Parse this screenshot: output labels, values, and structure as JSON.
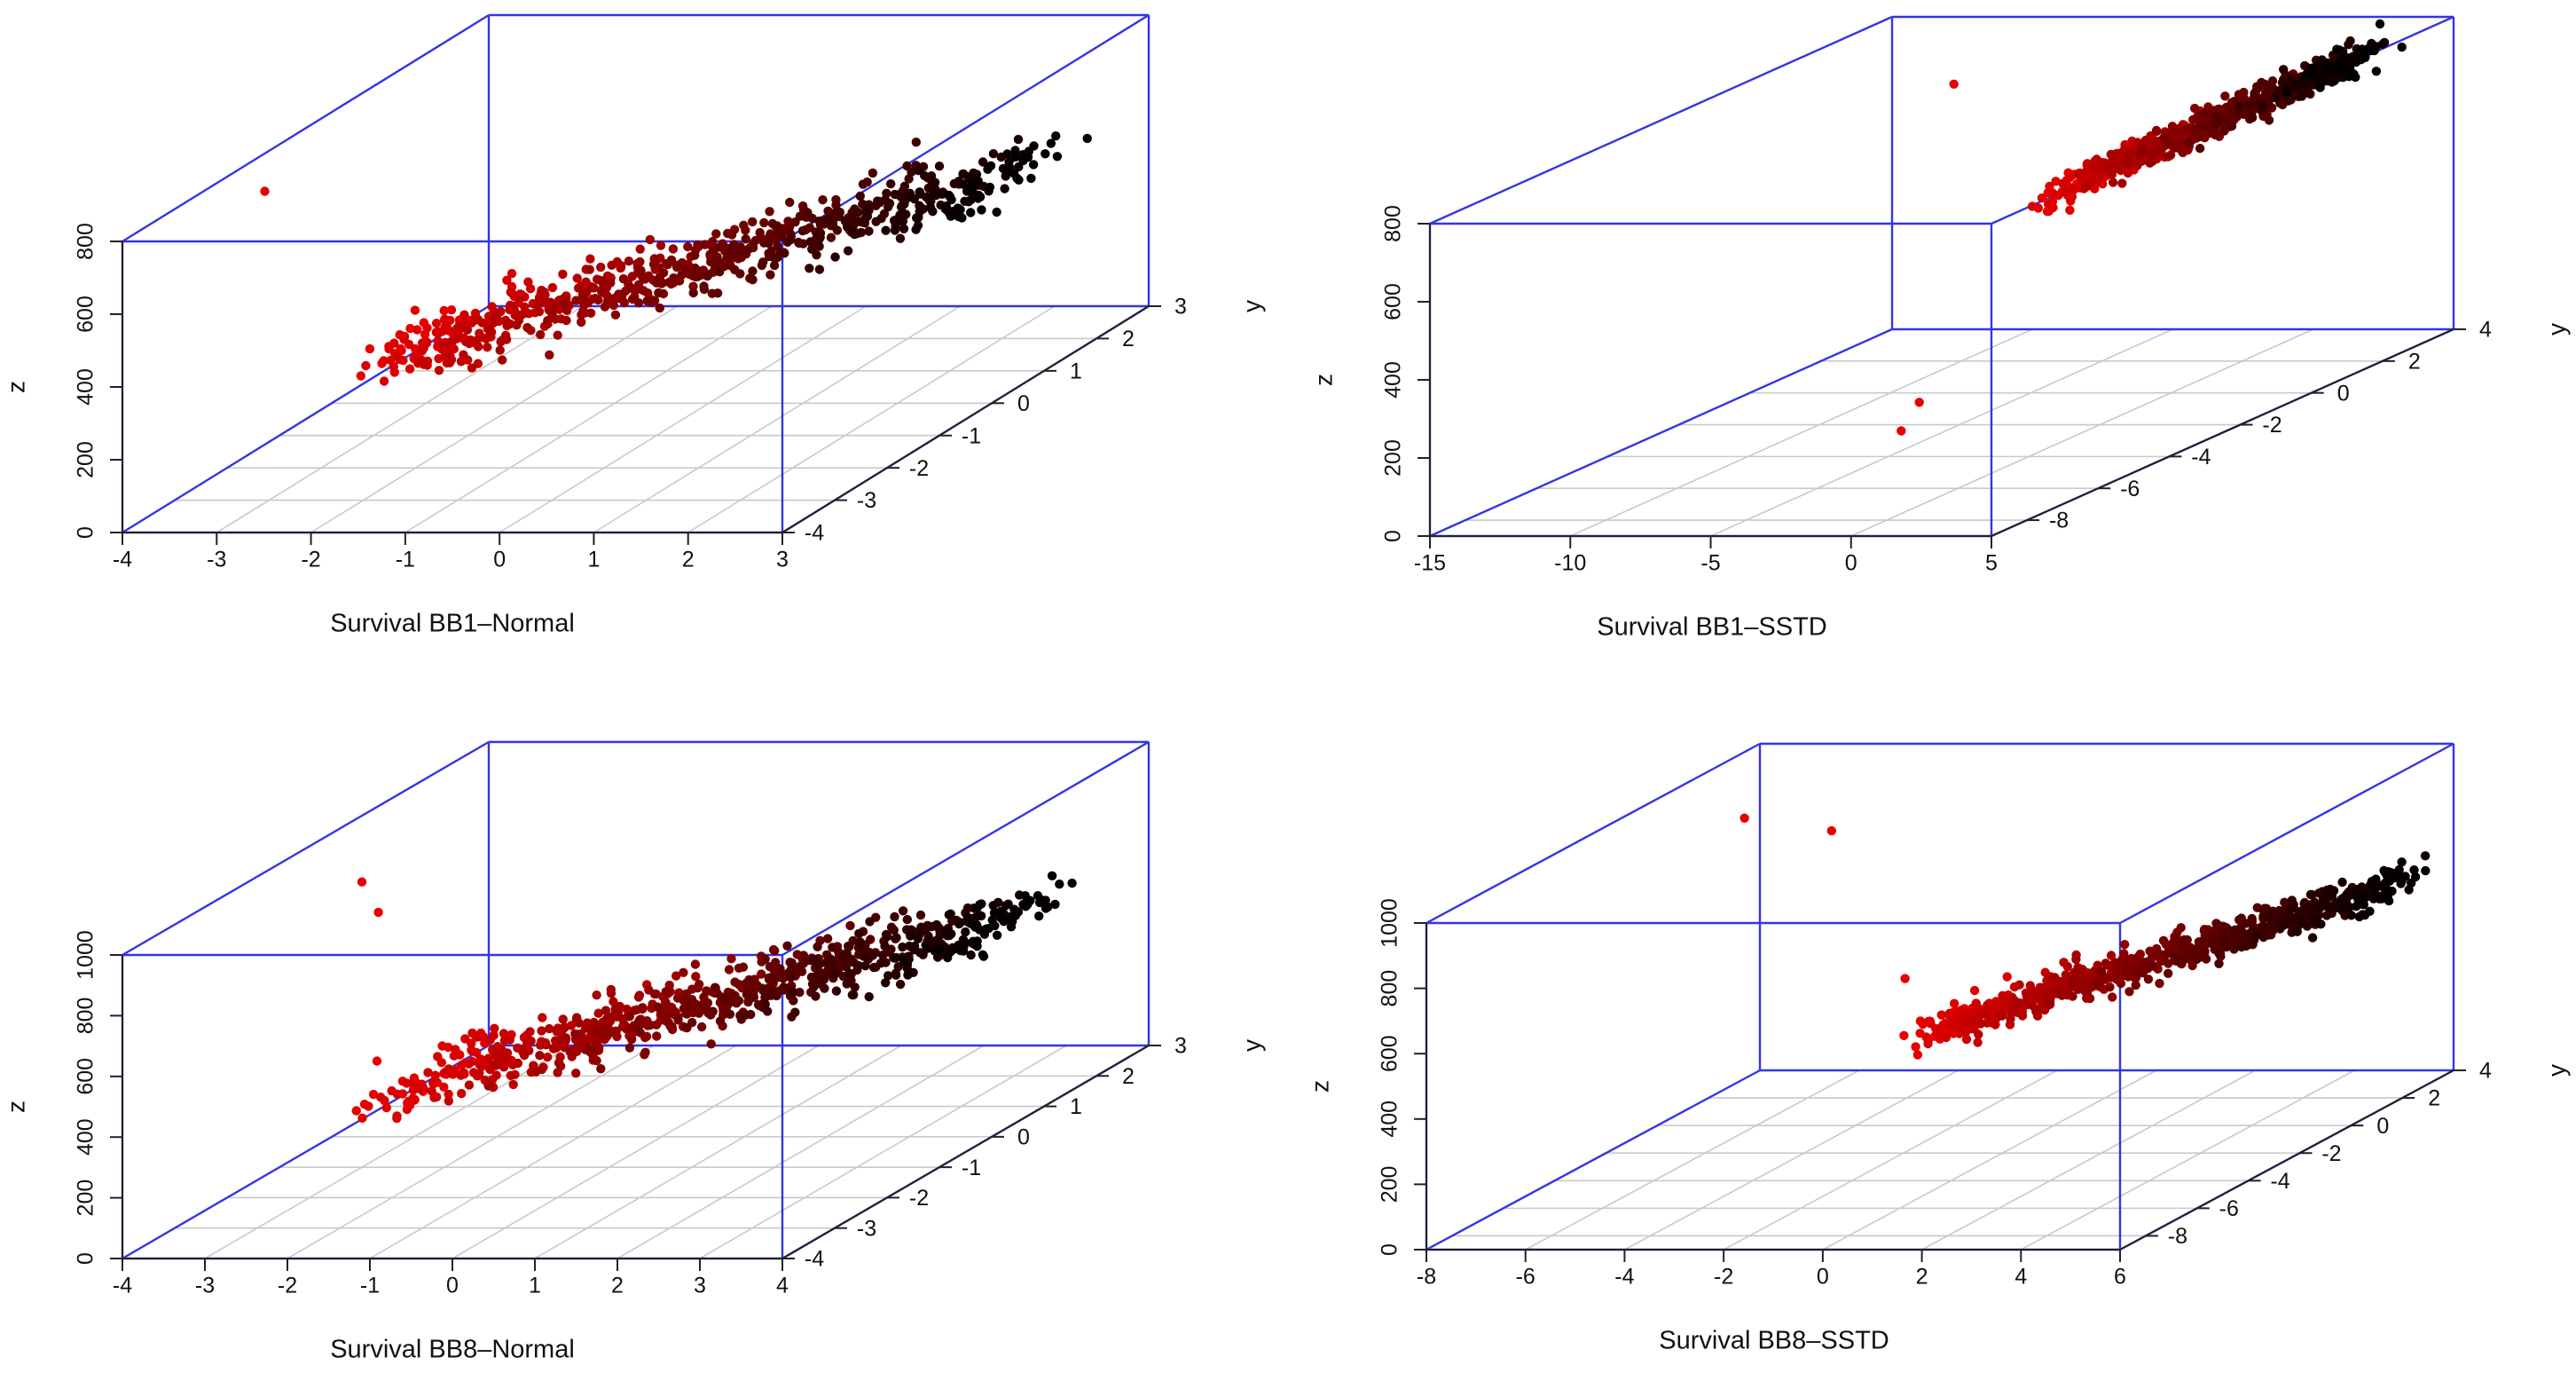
{
  "colors": {
    "box": "#3434e6",
    "grid": "#c9c9c9",
    "axis": "#222222",
    "pt_hi": "#e80000",
    "pt_lo": "#000000"
  },
  "chart_data": [
    {
      "type": "scatter3d",
      "title": "Survival BB1–Normal",
      "xlabel": "",
      "ylabel": "y",
      "zlabel": "z",
      "xlim": [
        -4,
        3
      ],
      "ylim": [
        -4,
        3
      ],
      "zlim": [
        0,
        800
      ],
      "x_ticks": [
        "-4",
        "-3",
        "-2",
        "-1",
        "0",
        "1",
        "2",
        "3"
      ],
      "y_ticks": [
        "-4",
        "-3",
        "-2",
        "-1",
        "0",
        "1",
        "2",
        "3"
      ],
      "z_ticks": [
        "0",
        "200",
        "400",
        "600",
        "800"
      ],
      "points": {
        "n": 700,
        "x_min": -2.5,
        "x_max": 2.6,
        "slope": 1.0,
        "spread": 0.6,
        "z_base": 200,
        "z_slope": 50,
        "z_noise": 30,
        "outliers": [
          {
            "x": -3.6,
            "y": -2.0,
            "z": 760
          }
        ]
      }
    },
    {
      "type": "scatter3d",
      "title": "Survival BB1–SSTD",
      "xlabel": "",
      "ylabel": "y",
      "zlabel": "z",
      "xlim": [
        -15,
        5
      ],
      "ylim": [
        -9,
        4
      ],
      "zlim": [
        0,
        800
      ],
      "x_ticks": [
        "-15",
        "-10",
        "-5",
        "0",
        "5"
      ],
      "y_ticks": [
        "-8",
        "-6",
        "-4",
        "-2",
        "0",
        "2",
        "4"
      ],
      "z_ticks": [
        "0",
        "200",
        "400",
        "600",
        "800"
      ],
      "points": {
        "n": 700,
        "x_min": 0.3,
        "x_max": 4.8,
        "slope": 2.0,
        "spread": 0.6,
        "z_base": 200,
        "z_slope": 30,
        "z_noise": 20,
        "outliers": [
          {
            "x": -9.0,
            "y": 1.0,
            "z": 750
          },
          {
            "x": -2.0,
            "y": -5.5,
            "z": 200
          },
          {
            "x": -1.0,
            "y": -6.8,
            "z": 180
          }
        ]
      }
    },
    {
      "type": "scatter3d",
      "title": "Survival BB8–Normal",
      "xlabel": "",
      "ylabel": "y",
      "zlabel": "z",
      "xlim": [
        -4,
        4
      ],
      "ylim": [
        -4,
        3
      ],
      "zlim": [
        0,
        1000
      ],
      "x_ticks": [
        "-4",
        "-3",
        "-2",
        "-1",
        "0",
        "1",
        "2",
        "3",
        "4"
      ],
      "y_ticks": [
        "-4",
        "-3",
        "-2",
        "-1",
        "0",
        "1",
        "2",
        "3"
      ],
      "z_ticks": [
        "0",
        "200",
        "400",
        "600",
        "800",
        "1000"
      ],
      "points": {
        "n": 750,
        "x_min": -2.1,
        "x_max": 3.6,
        "slope": 0.95,
        "spread": 0.6,
        "z_base": 230,
        "z_slope": 50,
        "z_noise": 40,
        "outliers": [
          {
            "x": -3.0,
            "y": -1.0,
            "z": 940
          },
          {
            "x": -2.8,
            "y": -1.0,
            "z": 840
          },
          {
            "x": -2.5,
            "y": -1.5,
            "z": 400
          }
        ]
      }
    },
    {
      "type": "scatter3d",
      "title": "Survival BB8–SSTD",
      "xlabel": "",
      "ylabel": "y",
      "zlabel": "z",
      "xlim": [
        -8,
        6
      ],
      "ylim": [
        -9,
        4
      ],
      "zlim": [
        0,
        1000
      ],
      "x_ticks": [
        "-8",
        "-6",
        "-4",
        "-2",
        "0",
        "2",
        "4",
        "6"
      ],
      "y_ticks": [
        "-8",
        "-6",
        "-4",
        "-2",
        "0",
        "2",
        "4"
      ],
      "z_ticks": [
        "0",
        "200",
        "400",
        "600",
        "800",
        "1000"
      ],
      "points": {
        "n": 750,
        "x_min": -0.5,
        "x_max": 5.8,
        "slope": 2.0,
        "spread": 0.7,
        "z_base": 230,
        "z_slope": 30,
        "z_noise": 25,
        "outliers": [
          {
            "x": -6.5,
            "y": 0.5,
            "z": 920
          },
          {
            "x": -5.0,
            "y": 1.0,
            "z": 860
          },
          {
            "x": -3.0,
            "y": 0.0,
            "z": 450
          }
        ]
      }
    }
  ]
}
